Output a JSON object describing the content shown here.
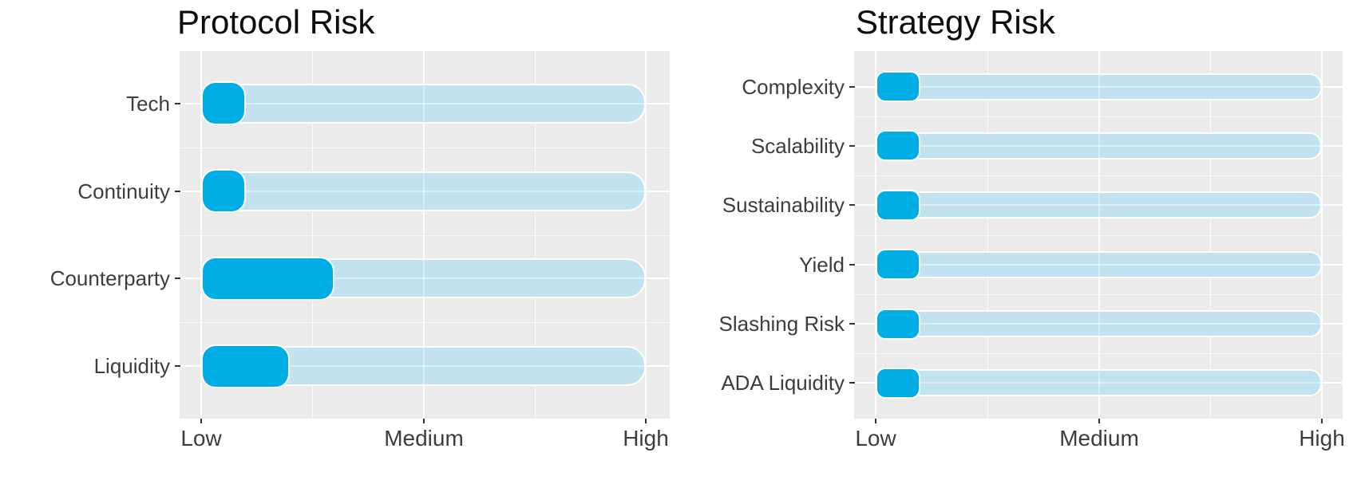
{
  "colors": {
    "bar_fill": "#00AEE5",
    "bar_track": "#C3E2EF",
    "panel_bg": "#EBEBEB",
    "grid": "#FFFFFF",
    "axis_text": "#3D3D3D",
    "title_text": "#0D0D0D"
  },
  "chart_data": [
    {
      "type": "bar",
      "orientation": "horizontal",
      "title": "Protocol Risk",
      "categories": [
        "Tech",
        "Continuity",
        "Counterparty",
        "Liquidity"
      ],
      "values": [
        1.2,
        1.2,
        1.6,
        1.4
      ],
      "track_full_value": 3,
      "xlim": [
        1,
        3
      ],
      "x_ticks": [
        "Low",
        "Medium",
        "High"
      ],
      "x_tick_values": [
        1,
        2,
        3
      ],
      "grid": true,
      "legend": "none"
    },
    {
      "type": "bar",
      "orientation": "horizontal",
      "title": "Strategy Risk",
      "categories": [
        "Complexity",
        "Scalability",
        "Sustainability",
        "Yield",
        "Slashing Risk",
        "ADA Liquidity"
      ],
      "values": [
        1.2,
        1.2,
        1.2,
        1.2,
        1.2,
        1.2
      ],
      "track_full_value": 3,
      "xlim": [
        1,
        3
      ],
      "x_ticks": [
        "Low",
        "Medium",
        "High"
      ],
      "x_tick_values": [
        1,
        2,
        3
      ],
      "grid": true,
      "legend": "none"
    }
  ]
}
